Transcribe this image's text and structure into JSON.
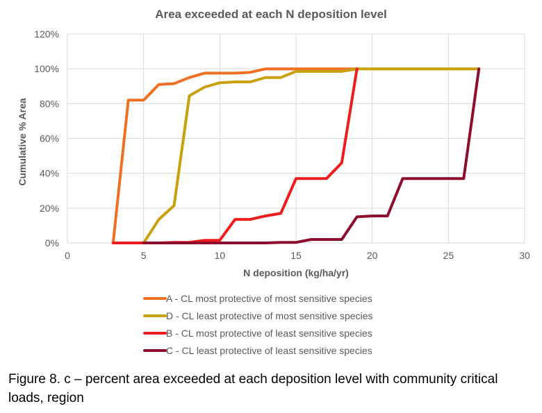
{
  "colors": {
    "A": "#f07023",
    "D": "#c9a00e",
    "B": "#ee1c1c",
    "C": "#8e0c2c",
    "grid": "#d9d9d9",
    "text": "#595959"
  },
  "chart_data": {
    "type": "line",
    "title": "Area exceeded at each N  deposition level",
    "xlabel": "N deposition (kg/ha/yr)",
    "ylabel": "Cumulative % Area",
    "xlim": [
      0,
      30
    ],
    "ylim": [
      0,
      120
    ],
    "x_ticks": [
      "0",
      "5",
      "10",
      "15",
      "20",
      "25",
      "30"
    ],
    "y_ticks": [
      "0%",
      "20%",
      "40%",
      "60%",
      "80%",
      "100%",
      "120%"
    ],
    "grid": "vertical and horizontal",
    "legend_position": "bottom",
    "series": [
      {
        "name": "A - CL most protective of most sensitive species",
        "color": "#f07023",
        "points": [
          [
            3,
            0
          ],
          [
            4,
            82
          ],
          [
            5,
            82
          ],
          [
            6,
            91
          ],
          [
            7,
            91.5
          ],
          [
            8,
            95
          ],
          [
            9,
            97.5
          ],
          [
            10,
            97.5
          ],
          [
            11,
            97.5
          ],
          [
            12,
            98
          ],
          [
            13,
            100
          ],
          [
            14,
            100
          ],
          [
            15,
            100
          ],
          [
            16,
            100
          ],
          [
            17,
            100
          ],
          [
            18,
            100
          ],
          [
            19,
            100
          ]
        ]
      },
      {
        "name": "D - CL least protective of most sensitive species",
        "color": "#c9a00e",
        "points": [
          [
            5,
            0
          ],
          [
            6,
            13.5
          ],
          [
            7,
            21.5
          ],
          [
            8,
            84.5
          ],
          [
            9,
            89.5
          ],
          [
            10,
            92
          ],
          [
            11,
            92.5
          ],
          [
            12,
            92.5
          ],
          [
            13,
            95
          ],
          [
            14,
            95
          ],
          [
            15,
            98.5
          ],
          [
            16,
            98.5
          ],
          [
            17,
            98.5
          ],
          [
            18,
            98.5
          ],
          [
            19,
            100
          ],
          [
            20,
            100
          ],
          [
            21,
            100
          ],
          [
            22,
            100
          ],
          [
            23,
            100
          ],
          [
            24,
            100
          ],
          [
            25,
            100
          ],
          [
            26,
            100
          ],
          [
            27,
            100
          ]
        ]
      },
      {
        "name": "B - CL most protective of least sensitive species",
        "color": "#ee1c1c",
        "points": [
          [
            3,
            0
          ],
          [
            4,
            0
          ],
          [
            5,
            0
          ],
          [
            6,
            0
          ],
          [
            7,
            0.3
          ],
          [
            8,
            0.3
          ],
          [
            9,
            1.5
          ],
          [
            10,
            1.5
          ],
          [
            11,
            13.5
          ],
          [
            12,
            13.5
          ],
          [
            13,
            15.5
          ],
          [
            14,
            17
          ],
          [
            15,
            37
          ],
          [
            16,
            37
          ],
          [
            17,
            37
          ],
          [
            18,
            46
          ],
          [
            19,
            100
          ]
        ]
      },
      {
        "name": "C - CL least protective of least sensitive species",
        "color": "#8e0c2c",
        "points": [
          [
            5,
            0
          ],
          [
            6,
            0
          ],
          [
            7,
            0
          ],
          [
            8,
            0
          ],
          [
            9,
            0
          ],
          [
            10,
            0
          ],
          [
            11,
            0
          ],
          [
            12,
            0
          ],
          [
            13,
            0
          ],
          [
            14,
            0.3
          ],
          [
            15,
            0.3
          ],
          [
            16,
            2
          ],
          [
            17,
            2
          ],
          [
            18,
            2
          ],
          [
            19,
            15
          ],
          [
            20,
            15.5
          ],
          [
            21,
            15.5
          ],
          [
            22,
            37
          ],
          [
            23,
            37
          ],
          [
            24,
            37
          ],
          [
            25,
            37
          ],
          [
            26,
            37
          ],
          [
            27,
            100
          ]
        ]
      }
    ]
  },
  "caption": "Figure 8. c – percent area exceeded at each deposition level with community critical loads, region"
}
